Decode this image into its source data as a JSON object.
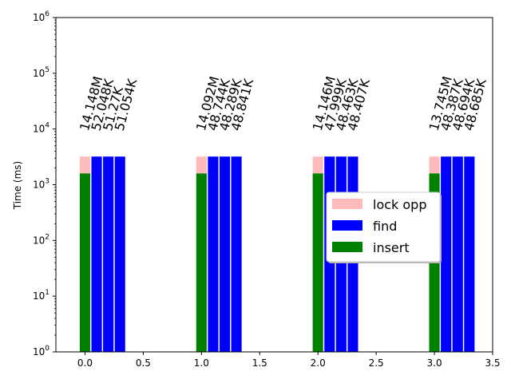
{
  "chart_data": {
    "type": "bar",
    "stacked": true,
    "yscale": "log",
    "ylabel": "Time (ms)",
    "xlim": [
      -0.25,
      3.5
    ],
    "ylim": [
      1,
      1000000
    ],
    "xticks": [
      "0.0",
      "0.5",
      "1.0",
      "1.5",
      "2.0",
      "2.5",
      "3.0",
      "3.5"
    ],
    "xtick_values": [
      0.0,
      0.5,
      1.0,
      1.5,
      2.0,
      2.5,
      3.0,
      3.5
    ],
    "yticks": [
      {
        "base": "10",
        "exp": "0"
      },
      {
        "base": "10",
        "exp": "1"
      },
      {
        "base": "10",
        "exp": "2"
      },
      {
        "base": "10",
        "exp": "3"
      },
      {
        "base": "10",
        "exp": "4"
      },
      {
        "base": "10",
        "exp": "5"
      },
      {
        "base": "10",
        "exp": "6"
      }
    ],
    "colors": {
      "lock opp": "#ffbbbb",
      "find": "#0000ff",
      "insert": "#008000"
    },
    "legend": {
      "position": "center-right",
      "entries": [
        "lock opp",
        "find",
        "insert"
      ]
    },
    "bars": [
      {
        "x": 0.0,
        "insert": 1600,
        "lock_opp": 1600,
        "find": 0,
        "label": "14.148M"
      },
      {
        "x": 0.1,
        "insert": 0,
        "lock_opp": 0,
        "find": 3200,
        "label": "52.048K"
      },
      {
        "x": 0.2,
        "insert": 0,
        "lock_opp": 0,
        "find": 3200,
        "label": "51.27K"
      },
      {
        "x": 0.3,
        "insert": 0,
        "lock_opp": 0,
        "find": 3200,
        "label": "51.054K"
      },
      {
        "x": 1.0,
        "insert": 1600,
        "lock_opp": 1600,
        "find": 0,
        "label": "14.092M"
      },
      {
        "x": 1.1,
        "insert": 0,
        "lock_opp": 0,
        "find": 3200,
        "label": "48.744K"
      },
      {
        "x": 1.2,
        "insert": 0,
        "lock_opp": 0,
        "find": 3200,
        "label": "48.289K"
      },
      {
        "x": 1.3,
        "insert": 0,
        "lock_opp": 0,
        "find": 3200,
        "label": "48.841K"
      },
      {
        "x": 2.0,
        "insert": 1600,
        "lock_opp": 1600,
        "find": 0,
        "label": "14.146M"
      },
      {
        "x": 2.1,
        "insert": 0,
        "lock_opp": 0,
        "find": 3200,
        "label": "47.999K"
      },
      {
        "x": 2.2,
        "insert": 0,
        "lock_opp": 0,
        "find": 3200,
        "label": "48.463K"
      },
      {
        "x": 2.3,
        "insert": 0,
        "lock_opp": 0,
        "find": 3200,
        "label": "48.407K"
      },
      {
        "x": 3.0,
        "insert": 1600,
        "lock_opp": 1600,
        "find": 0,
        "label": "13.745M"
      },
      {
        "x": 3.1,
        "insert": 0,
        "lock_opp": 0,
        "find": 3200,
        "label": "48.387K"
      },
      {
        "x": 3.2,
        "insert": 0,
        "lock_opp": 0,
        "find": 3200,
        "label": "48.694K"
      },
      {
        "x": 3.3,
        "insert": 0,
        "lock_opp": 0,
        "find": 3200,
        "label": "48.685K"
      }
    ]
  }
}
